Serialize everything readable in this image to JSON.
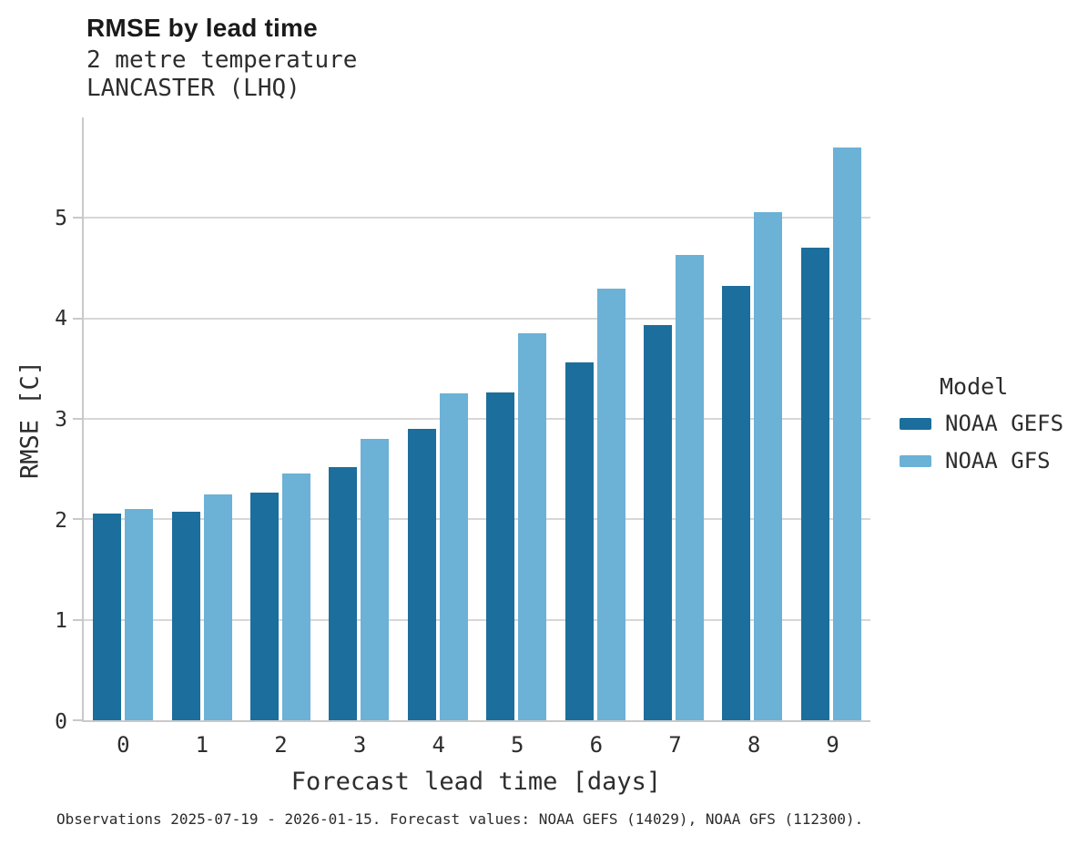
{
  "chart_data": {
    "type": "bar",
    "title": "RMSE by lead time",
    "subtitle_variable": "2 metre temperature",
    "subtitle_station": "LANCASTER (LHQ)",
    "xlabel": "Forecast lead time [days]",
    "ylabel": "RMSE [C]",
    "categories": [
      "0",
      "1",
      "2",
      "3",
      "4",
      "5",
      "6",
      "7",
      "8",
      "9"
    ],
    "series": [
      {
        "name": "NOAA GEFS",
        "color": "#1c6e9c",
        "values": [
          2.06,
          2.08,
          2.27,
          2.52,
          2.9,
          3.26,
          3.56,
          3.93,
          4.32,
          4.7
        ]
      },
      {
        "name": "NOAA GFS",
        "color": "#6cb1d6",
        "values": [
          2.1,
          2.25,
          2.46,
          2.8,
          3.25,
          3.85,
          4.3,
          4.63,
          5.06,
          5.7
        ]
      }
    ],
    "ylim": [
      0,
      6
    ],
    "yticks": [
      0,
      1,
      2,
      3,
      4,
      5
    ],
    "grid": true,
    "legend_title": "Model",
    "legend_position": "right",
    "caption": "Observations 2025-07-19 - 2026-01-15. Forecast values: NOAA GEFS (14029), NOAA GFS (112300).",
    "colors": {
      "gridline": "#d7d7d7",
      "axis": "#c9c9c9",
      "text": "#2d2d2d"
    }
  }
}
